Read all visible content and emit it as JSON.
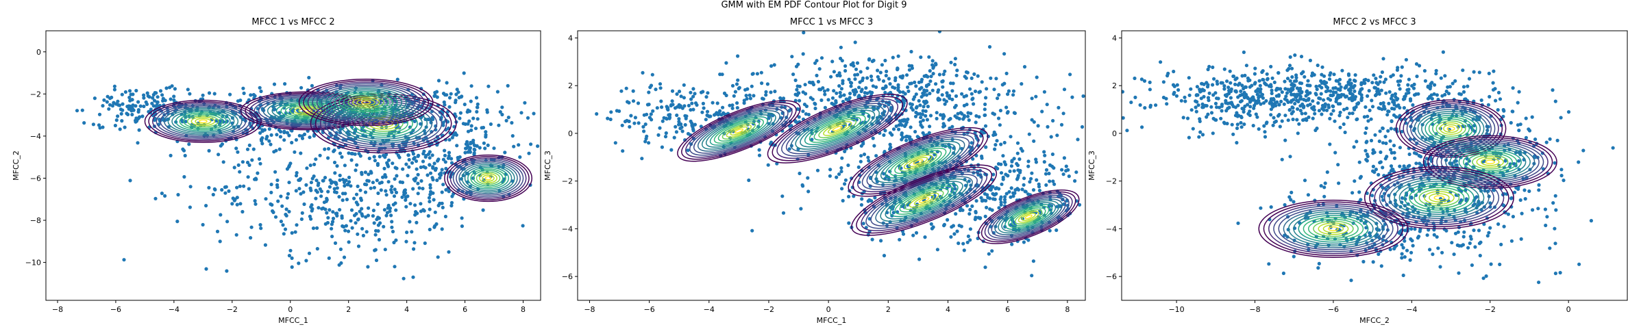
{
  "figure": {
    "suptitle": "GMM with EM PDF Contour Plot for Digit 9"
  },
  "chart_data": [
    {
      "type": "scatter",
      "title": "MFCC 1 vs MFCC 2",
      "xlabel": "MFCC_1",
      "ylabel": "MFCC_2",
      "xlim": [
        -8.4,
        8.6
      ],
      "ylim": [
        -11.8,
        1.0
      ],
      "xticks": [
        -8,
        -6,
        -4,
        -2,
        0,
        2,
        4,
        6,
        8
      ],
      "yticks": [
        0,
        -2,
        -4,
        -6,
        -8,
        -10
      ],
      "grid": false,
      "scatter_color": "#1f77b4",
      "scatter_regions": [
        {
          "cx": 1.0,
          "cy": -3.0,
          "sx": 3.0,
          "sy": 0.7,
          "n": 700
        },
        {
          "cx": -5.0,
          "cy": -2.6,
          "sx": 1.0,
          "sy": 0.4,
          "n": 120
        },
        {
          "cx": 2.0,
          "cy": -6.5,
          "sx": 2.4,
          "sy": 1.6,
          "n": 500
        },
        {
          "cx": 5.5,
          "cy": -4.8,
          "sx": 1.2,
          "sy": 1.2,
          "n": 220
        }
      ],
      "components": [
        {
          "mean": [
            -3.0,
            -3.3
          ],
          "sd": [
            2.0,
            1.0
          ],
          "angle": 0
        },
        {
          "mean": [
            0.6,
            -2.8
          ],
          "sd": [
            2.3,
            0.9
          ],
          "angle": 0
        },
        {
          "mean": [
            3.2,
            -3.4
          ],
          "sd": [
            2.5,
            1.4
          ],
          "angle": 0
        },
        {
          "mean": [
            2.6,
            -2.4
          ],
          "sd": [
            2.3,
            1.1
          ],
          "angle": 0
        },
        {
          "mean": [
            6.8,
            -6.0
          ],
          "sd": [
            1.5,
            1.1
          ],
          "angle": 0
        }
      ]
    },
    {
      "type": "scatter",
      "title": "MFCC 1 vs MFCC 3",
      "xlabel": "MFCC_1",
      "ylabel": "MFCC_3",
      "xlim": [
        -8.4,
        8.6
      ],
      "ylim": [
        -7.0,
        4.3
      ],
      "xticks": [
        -8,
        -6,
        -4,
        -2,
        0,
        2,
        4,
        6,
        8
      ],
      "yticks": [
        4,
        2,
        0,
        -2,
        -4,
        -6
      ],
      "grid": false,
      "scatter_color": "#1f77b4",
      "scatter_regions": [
        {
          "cx": -4.5,
          "cy": 0.8,
          "sx": 1.5,
          "sy": 0.7,
          "n": 220
        },
        {
          "cx": 2.0,
          "cy": 1.2,
          "sx": 2.5,
          "sy": 1.1,
          "n": 700
        },
        {
          "cx": 3.5,
          "cy": -2.2,
          "sx": 2.0,
          "sy": 1.1,
          "n": 450
        },
        {
          "cx": 6.5,
          "cy": -3.0,
          "sx": 1.0,
          "sy": 0.9,
          "n": 180
        }
      ],
      "components": [
        {
          "mean": [
            -3.0,
            0.1
          ],
          "sd": [
            2.2,
            0.8
          ],
          "angle": -22
        },
        {
          "mean": [
            0.3,
            0.2
          ],
          "sd": [
            2.5,
            0.9
          ],
          "angle": -22
        },
        {
          "mean": [
            3.0,
            -1.2
          ],
          "sd": [
            2.5,
            0.9
          ],
          "angle": -22
        },
        {
          "mean": [
            3.2,
            -2.8
          ],
          "sd": [
            2.6,
            0.9
          ],
          "angle": -22
        },
        {
          "mean": [
            6.7,
            -3.5
          ],
          "sd": [
            1.8,
            0.8
          ],
          "angle": -22
        }
      ]
    },
    {
      "type": "scatter",
      "title": "MFCC 2 vs MFCC 3",
      "xlabel": "MFCC_2",
      "ylabel": "MFCC_3",
      "xlim": [
        -11.4,
        1.5
      ],
      "ylim": [
        -7.0,
        4.3
      ],
      "xticks": [
        -10,
        -8,
        -6,
        -4,
        -2,
        0
      ],
      "yticks": [
        4,
        2,
        0,
        -2,
        -4,
        -6
      ],
      "grid": false,
      "scatter_color": "#1f77b4",
      "scatter_regions": [
        {
          "cx": -6.5,
          "cy": 1.6,
          "sx": 2.0,
          "sy": 0.6,
          "n": 650
        },
        {
          "cx": -8.5,
          "cy": 1.0,
          "sx": 0.9,
          "sy": 0.6,
          "n": 90
        },
        {
          "cx": -3.0,
          "cy": -1.5,
          "sx": 1.4,
          "sy": 1.6,
          "n": 650
        },
        {
          "cx": -5.0,
          "cy": -4.0,
          "sx": 1.3,
          "sy": 0.8,
          "n": 200
        }
      ],
      "components": [
        {
          "mean": [
            -3.0,
            0.2
          ],
          "sd": [
            1.4,
            1.2
          ],
          "angle": 0
        },
        {
          "mean": [
            -2.0,
            -1.2
          ],
          "sd": [
            1.7,
            1.1
          ],
          "angle": 0
        },
        {
          "mean": [
            -3.3,
            -2.7
          ],
          "sd": [
            1.9,
            1.3
          ],
          "angle": 0
        },
        {
          "mean": [
            -6.0,
            -4.0
          ],
          "sd": [
            1.9,
            1.2
          ],
          "angle": 0
        }
      ]
    }
  ]
}
